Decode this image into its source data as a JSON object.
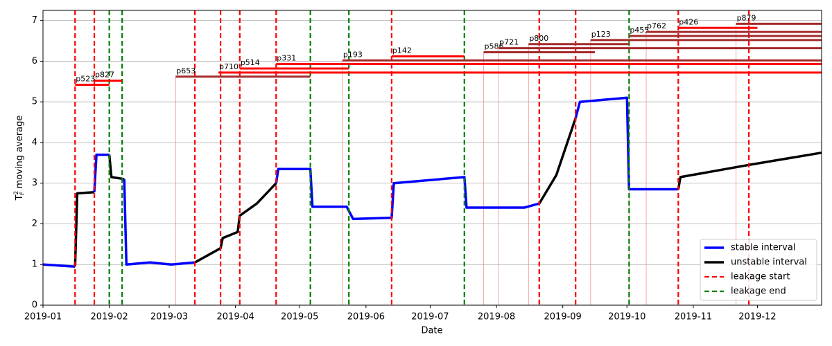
{
  "chart_data": {
    "type": "line",
    "xlabel": "Date",
    "ylabel": {
      "symbol": "T",
      "sub": "F",
      "sup": "2",
      "text": " moving average"
    },
    "xlim": [
      "2019-01-01",
      "2019-12-31"
    ],
    "xticks": [
      "2019-01",
      "2019-02",
      "2019-03",
      "2019-04",
      "2019-05",
      "2019-06",
      "2019-07",
      "2019-08",
      "2019-09",
      "2019-10",
      "2019-11",
      "2019-12"
    ],
    "ylim": [
      0,
      7.25
    ],
    "yticks": [
      0,
      1,
      2,
      3,
      4,
      5,
      6,
      7
    ],
    "grid": true,
    "legend": "lower right",
    "x": [
      "2019-01-01",
      "2019-01-16",
      "2019-01-17",
      "2019-01-25",
      "2019-01-26",
      "2019-02-01",
      "2019-02-02",
      "2019-02-08",
      "2019-02-09",
      "2019-02-20",
      "2019-03-02",
      "2019-03-13",
      "2019-03-25",
      "2019-03-26",
      "2019-04-02",
      "2019-04-03",
      "2019-04-11",
      "2019-04-20",
      "2019-04-21",
      "2019-05-06",
      "2019-05-07",
      "2019-05-23",
      "2019-05-26",
      "2019-06-13",
      "2019-06-14",
      "2019-07-17",
      "2019-07-18",
      "2019-08-14",
      "2019-08-21",
      "2019-08-29",
      "2019-09-07",
      "2019-09-09",
      "2019-10-01",
      "2019-10-02",
      "2019-10-25",
      "2019-10-26",
      "2019-11-27",
      "2019-12-31"
    ],
    "series": [
      {
        "name": "stable interval",
        "color": "#0000ff",
        "values": [
          1.0,
          0.95,
          null,
          2.78,
          3.7,
          3.7,
          null,
          3.1,
          1.0,
          1.05,
          1.0,
          1.05,
          null,
          null,
          null,
          null,
          null,
          3.0,
          3.35,
          3.35,
          2.42,
          2.42,
          2.12,
          2.15,
          3.0,
          3.15,
          2.4,
          2.4,
          2.5,
          null,
          4.6,
          5.0,
          5.1,
          2.85,
          2.85,
          null,
          null,
          null
        ]
      },
      {
        "name": "unstable interval",
        "color": "#000000",
        "values": [
          null,
          0.95,
          2.75,
          2.78,
          null,
          3.7,
          3.15,
          3.1,
          null,
          null,
          null,
          1.05,
          1.4,
          1.65,
          1.8,
          2.2,
          2.5,
          3.0,
          null,
          null,
          null,
          null,
          null,
          null,
          null,
          null,
          null,
          null,
          2.5,
          3.2,
          4.6,
          null,
          null,
          null,
          2.85,
          3.15,
          3.45,
          3.75
        ]
      }
    ],
    "markers": [
      {
        "name": "leakage start",
        "color": "#ff0000",
        "dates": [
          "2019-01-16",
          "2019-01-25",
          "2019-03-13",
          "2019-03-25",
          "2019-04-03",
          "2019-04-20",
          "2019-06-13",
          "2019-08-21",
          "2019-09-07",
          "2019-10-25",
          "2019-11-27"
        ]
      },
      {
        "name": "leakage end",
        "color": "#008000",
        "dates": [
          "2019-02-01",
          "2019-02-07",
          "2019-05-06",
          "2019-05-24",
          "2019-07-17",
          "2019-10-02"
        ]
      }
    ],
    "leaks": [
      {
        "label": "p523",
        "start": "2019-01-16",
        "end": "2019-02-01",
        "y": 5.42,
        "color": "#ff0000"
      },
      {
        "label": "p827",
        "start": "2019-01-25",
        "end": "2019-02-07",
        "y": 5.52,
        "color": "#ff0000"
      },
      {
        "label": "p653",
        "start": "2019-03-04",
        "end": "2019-05-06",
        "y": 5.62,
        "color": "#a52a2a"
      },
      {
        "label": "p710",
        "start": "2019-03-24",
        "end": "2019-12-31",
        "y": 5.72,
        "color": "#ff0000"
      },
      {
        "label": "p514",
        "start": "2019-04-03",
        "end": "2019-05-24",
        "y": 5.82,
        "color": "#ff0000"
      },
      {
        "label": "p331",
        "start": "2019-04-20",
        "end": "2019-12-31",
        "y": 5.93,
        "color": "#ff0000"
      },
      {
        "label": "p193",
        "start": "2019-05-21",
        "end": "2019-12-31",
        "y": 6.02,
        "color": "#a52a2a"
      },
      {
        "label": "p142",
        "start": "2019-06-13",
        "end": "2019-07-17",
        "y": 6.12,
        "color": "#ff0000"
      },
      {
        "label": "p586",
        "start": "2019-07-26",
        "end": "2019-09-16",
        "y": 6.22,
        "color": "#a52a2a"
      },
      {
        "label": "p721",
        "start": "2019-08-02",
        "end": "2019-12-31",
        "y": 6.32,
        "color": "#a52a2a"
      },
      {
        "label": "p800",
        "start": "2019-08-16",
        "end": "2019-10-02",
        "y": 6.42,
        "color": "#a52a2a"
      },
      {
        "label": "p123",
        "start": "2019-09-14",
        "end": "2019-12-31",
        "y": 6.52,
        "color": "#a52a2a"
      },
      {
        "label": "p455",
        "start": "2019-10-02",
        "end": "2019-12-31",
        "y": 6.62,
        "color": "#a52a2a"
      },
      {
        "label": "p762",
        "start": "2019-10-10",
        "end": "2019-12-31",
        "y": 6.72,
        "color": "#a52a2a"
      },
      {
        "label": "p426",
        "start": "2019-10-25",
        "end": "2019-12-01",
        "y": 6.82,
        "color": "#ff0000"
      },
      {
        "label": "p879",
        "start": "2019-11-21",
        "end": "2019-12-31",
        "y": 6.92,
        "color": "#a52a2a"
      }
    ]
  }
}
